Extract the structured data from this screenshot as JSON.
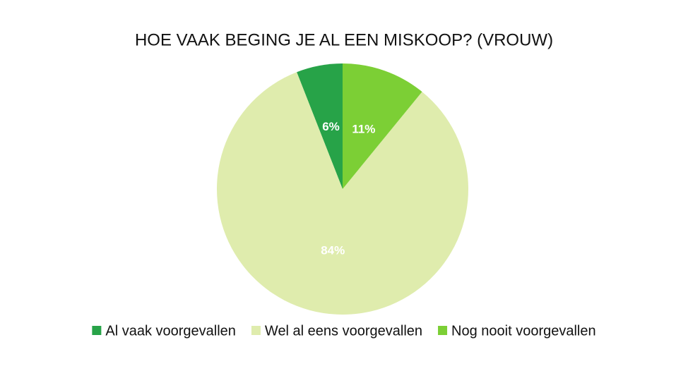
{
  "chart_data": {
    "type": "pie",
    "title": "HOE VAAK BEGING JE AL EEN MISKOOP? (VROUW)",
    "categories": [
      "Al vaak voorgevallen",
      "Wel al eens voorgevallen",
      "Nog nooit voorgevallen"
    ],
    "values": [
      6,
      84,
      11
    ],
    "value_labels": [
      "6%",
      "84%",
      "11%"
    ],
    "colors": [
      "#27a348",
      "#dfecad",
      "#7ccf35"
    ],
    "legend": "bottom"
  }
}
